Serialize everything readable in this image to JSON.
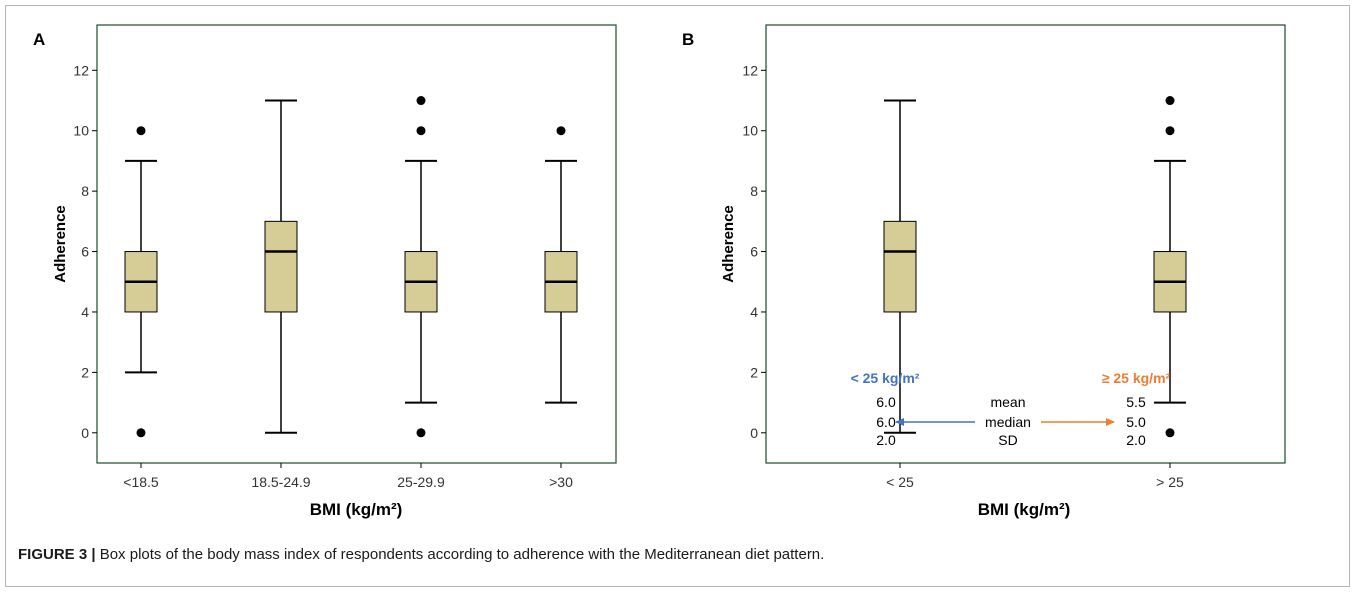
{
  "colors": {
    "box_fill": "#d6cc96",
    "frame": "#1f4a2f",
    "blue": "#4472c4",
    "orange": "#ed7d31"
  },
  "caption": {
    "label": "FIGURE 3 |",
    "text": " Box plots of the body mass index of respondents according to adherence with the Mediterranean diet pattern."
  },
  "chart_data": [
    {
      "type": "box",
      "panel_label": "A",
      "xlabel": "BMI (kg/m²)",
      "ylabel": "Adherence",
      "ylim": [
        -1,
        13.5
      ],
      "yticks": [
        0,
        2,
        4,
        6,
        8,
        10,
        12
      ],
      "categories": [
        "<18.5",
        "18.5-24.9",
        "25-29.9",
        ">30"
      ],
      "boxes": [
        {
          "min": 2,
          "q1": 4,
          "median": 5,
          "q3": 6,
          "max": 9,
          "outliers": [
            0,
            10
          ]
        },
        {
          "min": 0,
          "q1": 4,
          "median": 6,
          "q3": 7,
          "max": 11,
          "outliers": []
        },
        {
          "min": 1,
          "q1": 4,
          "median": 5,
          "q3": 6,
          "max": 9,
          "outliers": [
            0,
            10,
            11
          ]
        },
        {
          "min": 1,
          "q1": 4,
          "median": 5,
          "q3": 6,
          "max": 9,
          "outliers": [
            10
          ]
        }
      ]
    },
    {
      "type": "box",
      "panel_label": "B",
      "xlabel": "BMI (kg/m²)",
      "ylabel": "Adherence",
      "ylim": [
        -1,
        13.5
      ],
      "yticks": [
        0,
        2,
        4,
        6,
        8,
        10,
        12
      ],
      "categories": [
        "< 25",
        "> 25"
      ],
      "boxes": [
        {
          "min": 0,
          "q1": 4,
          "median": 6,
          "q3": 7,
          "max": 11,
          "outliers": []
        },
        {
          "min": 1,
          "q1": 4,
          "median": 5,
          "q3": 6,
          "max": 9,
          "outliers": [
            0,
            10,
            11
          ]
        }
      ],
      "annotation": {
        "left_header": "< 25 kg/m²",
        "right_header": "≥ 25 kg/m²",
        "row_labels": [
          "mean",
          "median",
          "SD"
        ],
        "left_values": [
          "6.0",
          "6.0",
          "2.0"
        ],
        "right_values": [
          "5.5",
          "5.0",
          "2.0"
        ]
      }
    }
  ]
}
